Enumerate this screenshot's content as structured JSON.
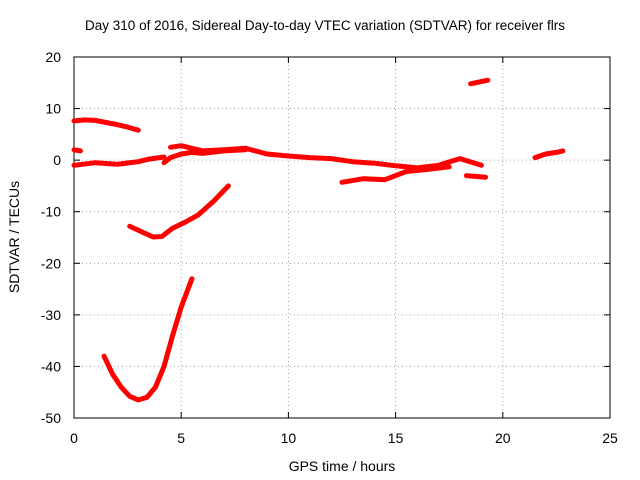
{
  "chart_data": {
    "type": "scatter",
    "title": "Day 310 of 2016, Sidereal Day-to-day VTEC variation (SDTVAR) for receiver flrs",
    "xlabel": "GPS time / hours",
    "ylabel": "SDTVAR / TECUs",
    "xlim": [
      0,
      25
    ],
    "ylim": [
      -50,
      20
    ],
    "xticks": [
      0,
      5,
      10,
      15,
      20,
      25
    ],
    "yticks": [
      20,
      10,
      0,
      -10,
      -20,
      -30,
      -40,
      -50
    ],
    "grid": true,
    "series_color": "#ff0000",
    "series": [
      {
        "x": [
          0.0,
          0.5,
          1.0,
          1.5,
          2.0,
          2.5,
          3.0
        ],
        "y": [
          7.6,
          7.8,
          7.7,
          7.3,
          6.9,
          6.4,
          5.8
        ]
      },
      {
        "x": [
          0.0,
          0.3
        ],
        "y": [
          2.0,
          1.8
        ]
      },
      {
        "x": [
          0.0,
          1.0,
          2.0,
          3.0,
          3.5,
          4.0,
          4.2
        ],
        "y": [
          -1.0,
          -0.5,
          -0.8,
          -0.3,
          0.2,
          0.5,
          0.6
        ]
      },
      {
        "x": [
          4.2,
          4.5,
          5.0,
          5.5,
          6.0,
          7.0,
          8.0
        ],
        "y": [
          -0.5,
          0.5,
          1.2,
          1.5,
          1.3,
          1.8,
          2.0
        ]
      },
      {
        "x": [
          4.5,
          5.0,
          5.5,
          6.0,
          7.0,
          8.0,
          9.0,
          10.0,
          11.0,
          12.0,
          13.0,
          14.0,
          15.0,
          16.0,
          17.0,
          18.0,
          19.0
        ],
        "y": [
          2.5,
          2.8,
          2.3,
          1.8,
          2.0,
          2.3,
          1.2,
          0.8,
          0.5,
          0.3,
          -0.3,
          -0.6,
          -1.1,
          -1.5,
          -1.0,
          0.3,
          -1.0
        ]
      },
      {
        "x": [
          12.5,
          13.5,
          14.5,
          15.5,
          16.5,
          17.5
        ],
        "y": [
          -4.3,
          -3.6,
          -3.8,
          -2.2,
          -1.8,
          -1.3
        ]
      },
      {
        "x": [
          18.3,
          19.2
        ],
        "y": [
          -3.0,
          -3.3
        ]
      },
      {
        "x": [
          18.5,
          19.3
        ],
        "y": [
          14.8,
          15.5
        ]
      },
      {
        "x": [
          21.5,
          22.0,
          22.5,
          22.8
        ],
        "y": [
          0.5,
          1.2,
          1.5,
          1.8
        ]
      },
      {
        "x": [
          2.6,
          3.2,
          3.7,
          4.1,
          4.6,
          5.2,
          5.8,
          6.5,
          7.2
        ],
        "y": [
          -12.8,
          -14.0,
          -14.9,
          -14.8,
          -13.2,
          -12.0,
          -10.6,
          -8.0,
          -5.0
        ]
      },
      {
        "x": [
          1.4,
          1.8,
          2.2,
          2.6,
          3.0,
          3.4,
          3.8,
          4.2,
          4.6,
          5.0,
          5.5
        ],
        "y": [
          -38.0,
          -41.5,
          -44.0,
          -45.8,
          -46.5,
          -46.0,
          -44.0,
          -40.0,
          -34.0,
          -28.5,
          -23.0
        ]
      }
    ]
  }
}
